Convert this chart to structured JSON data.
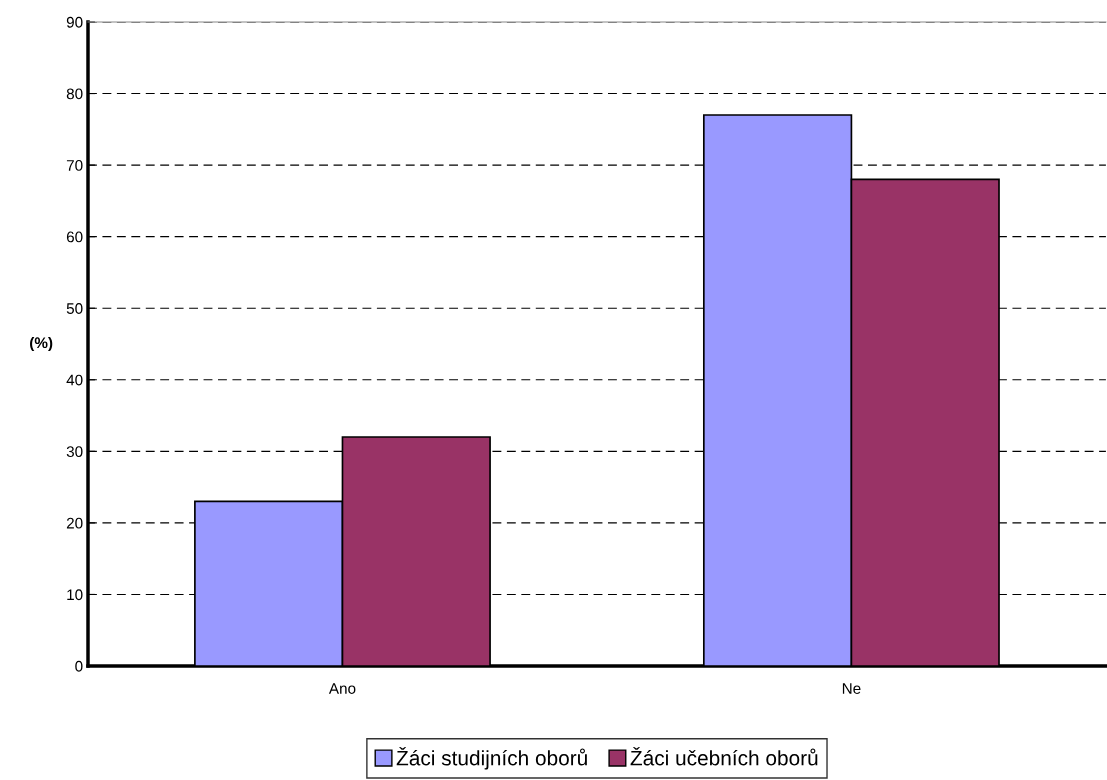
{
  "chart_data": {
    "type": "bar",
    "ylabel": "(%)",
    "categories": [
      "Ano",
      "Ne"
    ],
    "series": [
      {
        "name": "Žáci studijních oborů",
        "color": "#9999ff",
        "values": [
          23,
          77
        ]
      },
      {
        "name": "Žáci učebních oborů",
        "color": "#993366",
        "values": [
          32,
          68
        ]
      }
    ],
    "ylim": [
      0,
      90
    ],
    "yticks": [
      0,
      10,
      20,
      30,
      40,
      50,
      60,
      70,
      80,
      90
    ],
    "grid": "y",
    "legend": "bottom"
  }
}
